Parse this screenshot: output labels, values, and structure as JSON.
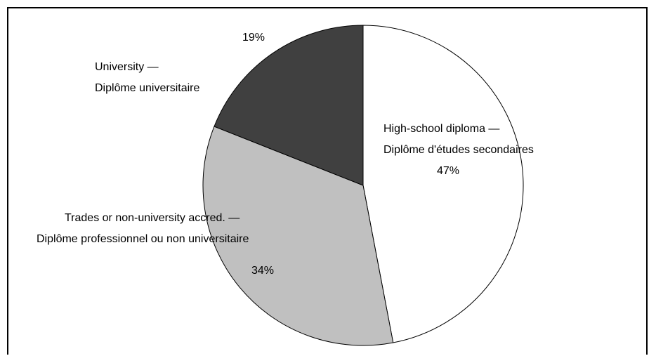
{
  "chart_data": {
    "type": "pie",
    "title": "",
    "start_angle_deg": 0,
    "direction": "clockwise",
    "legend": "none",
    "slices": [
      {
        "name_en": "High-school diploma —",
        "name_fr": "Diplôme d'études secondaires",
        "value": 47,
        "label": "47%",
        "color": "#ffffff"
      },
      {
        "name_en": "Trades or non-university accred. —",
        "name_fr": "Diplôme professionnel ou non universitaire",
        "value": 34,
        "label": "34%",
        "color": "#c0c0c0"
      },
      {
        "name_en": "University —",
        "name_fr": "Diplôme universitaire",
        "value": 19,
        "label": "19%",
        "color": "#404040"
      }
    ]
  }
}
